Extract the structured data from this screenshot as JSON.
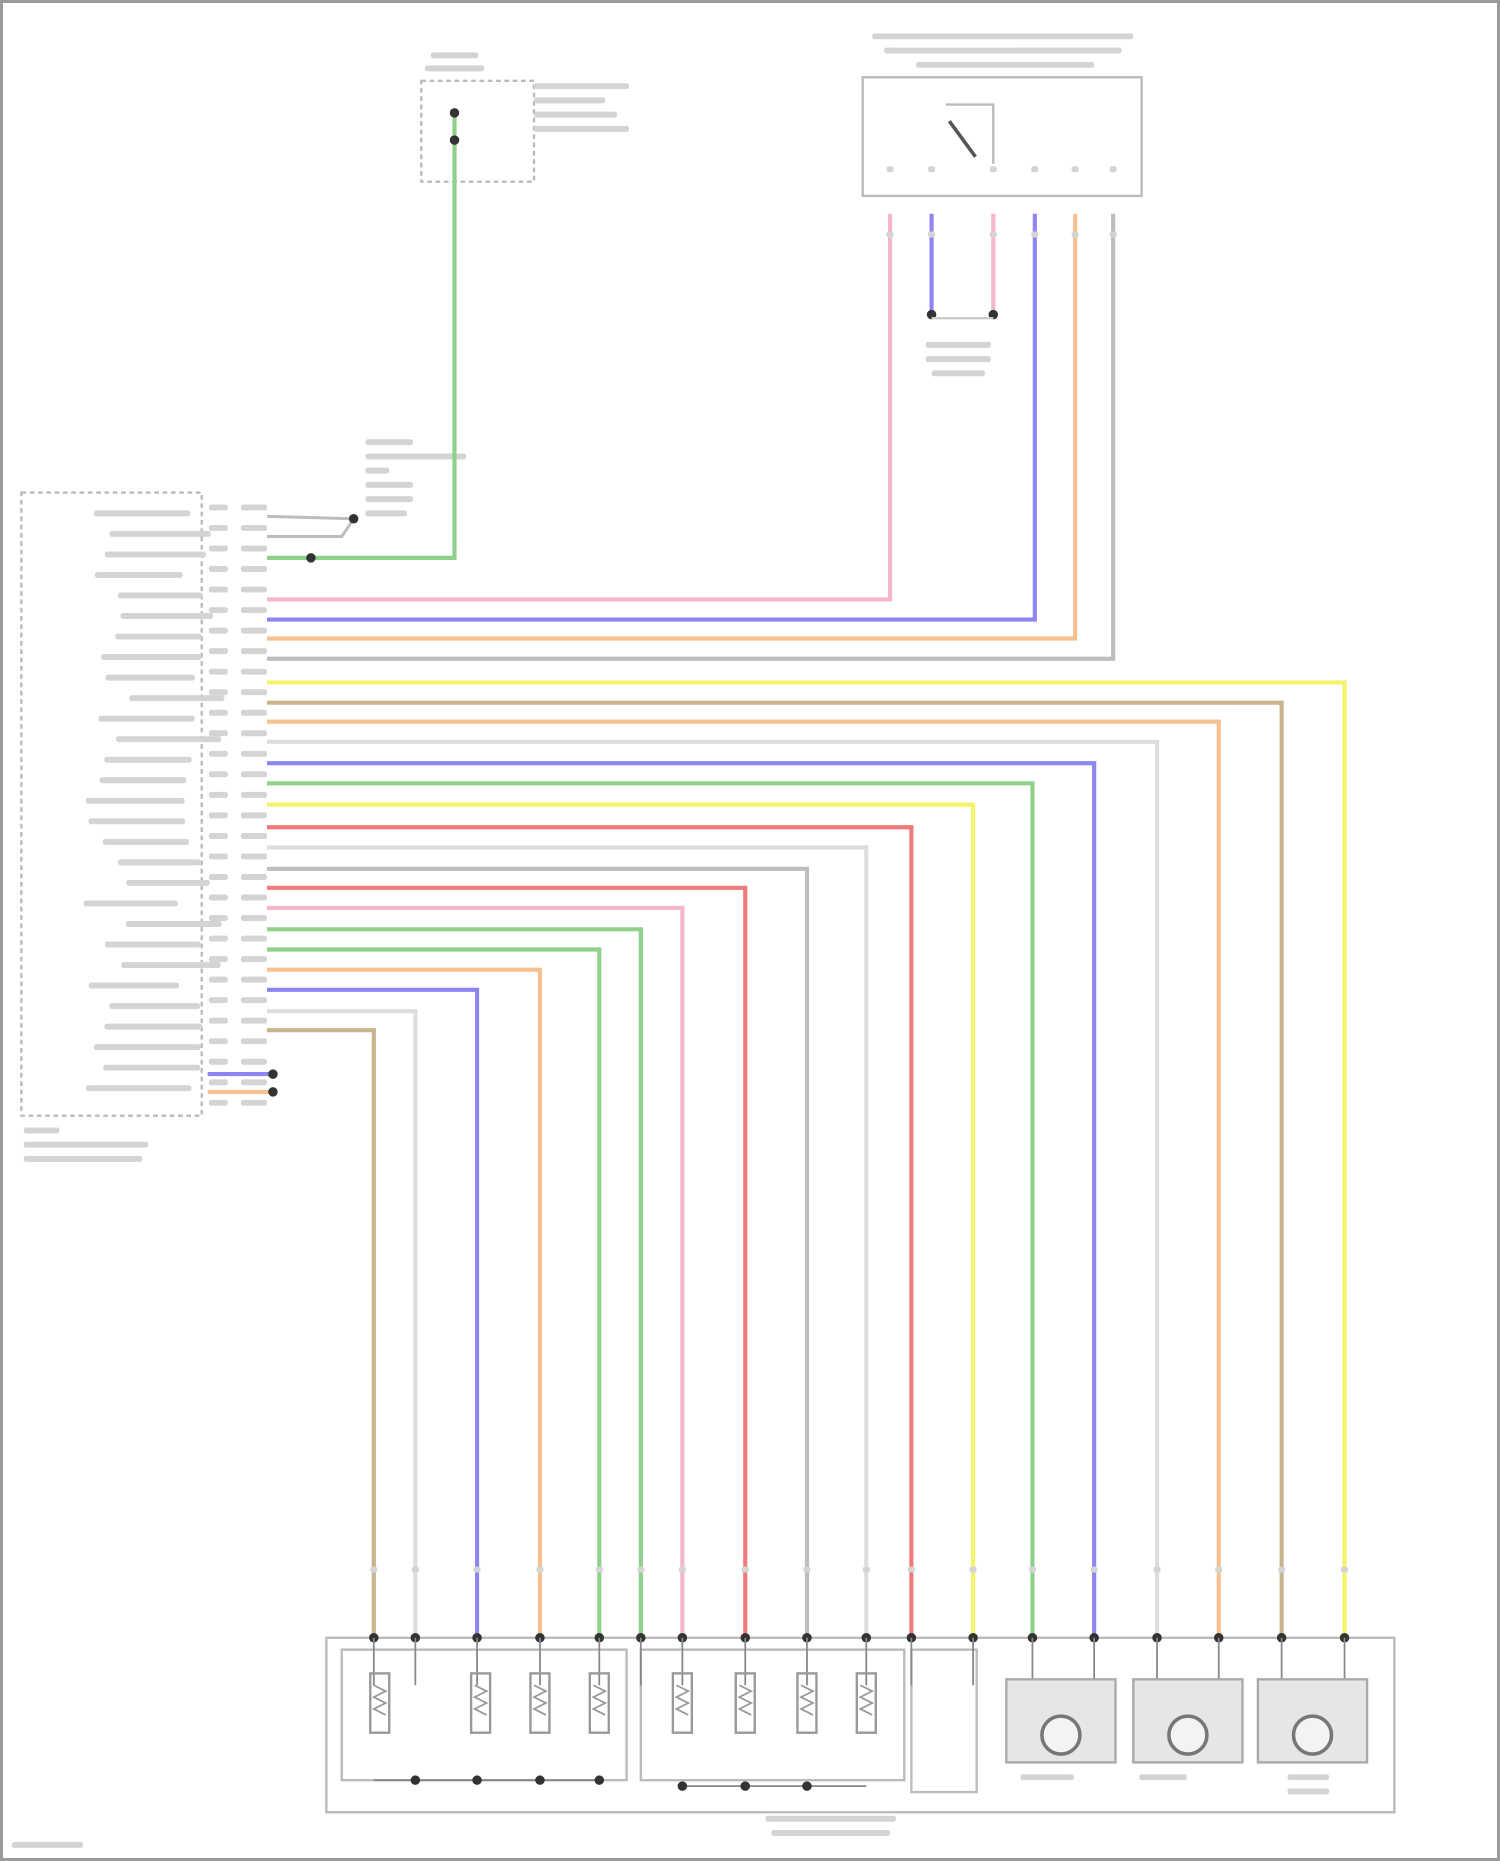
{
  "diagram": {
    "type": "wiring-diagram",
    "text_legible": false,
    "wire_colors": {
      "green": "#8fd18a",
      "pink": "#f4b6c8",
      "blue": "#8c86f2",
      "orange": "#f6c08f",
      "gray": "#bdbdbd",
      "light": "#dddddd",
      "yellow": "#f5f36a",
      "tan": "#c9b48e",
      "red": "#f27a7a"
    },
    "pcm_wires_top_to_bottom": [
      "green",
      "pink",
      "blue",
      "orange",
      "gray",
      "yellow",
      "tan",
      "orange",
      "light",
      "blue",
      "green",
      "yellow",
      "red",
      "light",
      "gray",
      "red",
      "pink",
      "green",
      "green",
      "orange",
      "blue",
      "light",
      "tan"
    ]
  }
}
